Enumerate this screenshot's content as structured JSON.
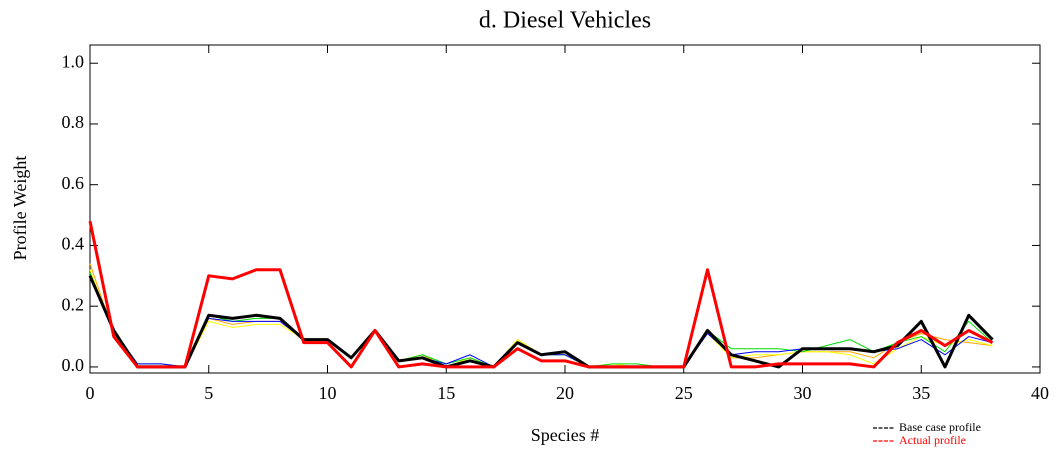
{
  "chart_data": {
    "type": "line",
    "title": "d.  Diesel Vehicles",
    "xlabel": "Species #",
    "ylabel": "Profile Weight",
    "x": [
      0,
      1,
      2,
      3,
      4,
      5,
      6,
      7,
      8,
      9,
      10,
      11,
      12,
      13,
      14,
      15,
      16,
      17,
      18,
      19,
      20,
      21,
      22,
      23,
      24,
      25,
      26,
      27,
      28,
      29,
      30,
      31,
      32,
      33,
      34,
      35,
      36,
      37,
      38
    ],
    "xlim": [
      0,
      40
    ],
    "xticks": [
      0,
      5,
      10,
      15,
      20,
      25,
      30,
      35,
      40
    ],
    "ylim": [
      -0.02,
      1.06
    ],
    "yticks": [
      {
        "value": 0,
        "label": "0.0"
      },
      {
        "value": 0.2,
        "label": "0.2"
      },
      {
        "value": 0.4,
        "label": "0.4"
      },
      {
        "value": 0.6,
        "label": "0.6"
      },
      {
        "value": 0.8,
        "label": "0.8"
      },
      {
        "value": 1.0,
        "label": "1.0"
      }
    ],
    "series": [
      {
        "color": "#ffa500",
        "values": [
          0.34,
          0.11,
          0.0,
          0.0,
          0.0,
          0.16,
          0.14,
          0.15,
          0.15,
          0.09,
          0.09,
          0.03,
          0.12,
          0.02,
          0.04,
          0.0,
          0.03,
          0.0,
          0.09,
          0.04,
          0.04,
          0.0,
          0.0,
          0.0,
          0.0,
          0.0,
          0.12,
          0.03,
          0.03,
          0.04,
          0.05,
          0.05,
          0.05,
          0.03,
          0.08,
          0.11,
          0.09,
          0.08,
          0.07
        ]
      },
      {
        "color": "#ffff00",
        "values": [
          0.32,
          0.11,
          0.0,
          0.0,
          0.0,
          0.15,
          0.13,
          0.14,
          0.14,
          0.09,
          0.09,
          0.03,
          0.12,
          0.02,
          0.03,
          0.0,
          0.03,
          0.0,
          0.09,
          0.04,
          0.04,
          0.0,
          0.01,
          0.0,
          0.0,
          0.0,
          0.11,
          0.03,
          0.04,
          0.04,
          0.05,
          0.05,
          0.04,
          0.01,
          0.06,
          0.1,
          0.07,
          0.09,
          0.07
        ]
      },
      {
        "color": "#00dd00",
        "values": [
          0.31,
          0.12,
          0.01,
          0.01,
          0.0,
          0.17,
          0.15,
          0.16,
          0.16,
          0.09,
          0.09,
          0.03,
          0.12,
          0.02,
          0.04,
          0.01,
          0.03,
          0.0,
          0.08,
          0.04,
          0.04,
          0.0,
          0.01,
          0.01,
          0.0,
          0.0,
          0.12,
          0.06,
          0.06,
          0.06,
          0.05,
          0.07,
          0.09,
          0.05,
          0.08,
          0.1,
          0.05,
          0.15,
          0.08
        ]
      },
      {
        "color": "#0000ff",
        "values": [
          0.3,
          0.12,
          0.01,
          0.01,
          0.0,
          0.16,
          0.15,
          0.15,
          0.15,
          0.09,
          0.09,
          0.03,
          0.12,
          0.02,
          0.03,
          0.01,
          0.04,
          0.0,
          0.08,
          0.04,
          0.04,
          0.0,
          0.0,
          0.0,
          0.0,
          0.0,
          0.11,
          0.04,
          0.05,
          0.05,
          0.06,
          0.06,
          0.06,
          0.05,
          0.06,
          0.09,
          0.04,
          0.1,
          0.08
        ]
      },
      {
        "name": "Base case profile",
        "color": "#000000",
        "values": [
          0.3,
          0.12,
          0.0,
          0.0,
          0.0,
          0.17,
          0.16,
          0.17,
          0.16,
          0.09,
          0.09,
          0.03,
          0.12,
          0.02,
          0.03,
          0.0,
          0.02,
          0.0,
          0.08,
          0.04,
          0.05,
          0.0,
          0.0,
          0.0,
          0.0,
          0.0,
          0.12,
          0.04,
          0.02,
          0.0,
          0.06,
          0.06,
          0.06,
          0.05,
          0.07,
          0.15,
          0.0,
          0.17,
          0.09
        ]
      },
      {
        "name": "Actual profile",
        "color": "#ff0000",
        "values": [
          0.48,
          0.1,
          0.0,
          0.0,
          0.0,
          0.3,
          0.29,
          0.32,
          0.32,
          0.08,
          0.08,
          0.0,
          0.12,
          0.0,
          0.01,
          0.0,
          0.0,
          0.0,
          0.06,
          0.02,
          0.02,
          0.0,
          0.0,
          0.0,
          0.0,
          0.0,
          0.32,
          0.0,
          0.0,
          0.01,
          0.01,
          0.01,
          0.01,
          0.0,
          0.08,
          0.12,
          0.07,
          0.12,
          0.08
        ]
      }
    ]
  }
}
